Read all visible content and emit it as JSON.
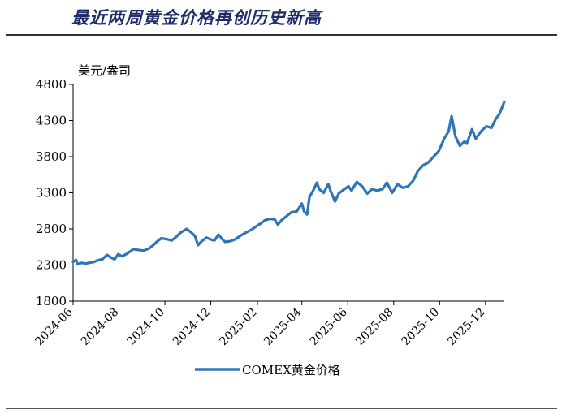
{
  "header": {
    "title": "最近两周黄金价格再创历史新高"
  },
  "chart_data": {
    "type": "line",
    "title": "最近两周黄金价格再创历史新高",
    "ylabel": "美元/盎司",
    "xlabel": "",
    "ylim": [
      1800,
      4800
    ],
    "yticks": [
      "1800",
      "2300",
      "2800",
      "3300",
      "3800",
      "4300",
      "4800"
    ],
    "xticks": [
      "2024-06",
      "2024-08",
      "2024-10",
      "2024-12",
      "2025-02",
      "2025-04",
      "2025-06",
      "2025-08",
      "2025-10",
      "2025-12"
    ],
    "x_range": [
      "2024-06",
      "2025-12-26"
    ],
    "legend": "COMEX黄金价格",
    "color": "#2e75b6",
    "series": [
      {
        "name": "COMEX黄金价格",
        "points": [
          [
            "2024-06-01",
            2345
          ],
          [
            "2024-06-05",
            2370
          ],
          [
            "2024-06-07",
            2310
          ],
          [
            "2024-06-12",
            2330
          ],
          [
            "2024-06-18",
            2320
          ],
          [
            "2024-06-24",
            2335
          ],
          [
            "2024-06-28",
            2340
          ],
          [
            "2024-07-05",
            2370
          ],
          [
            "2024-07-10",
            2380
          ],
          [
            "2024-07-16",
            2440
          ],
          [
            "2024-07-22",
            2400
          ],
          [
            "2024-07-26",
            2380
          ],
          [
            "2024-07-31",
            2450
          ],
          [
            "2024-08-05",
            2420
          ],
          [
            "2024-08-12",
            2460
          ],
          [
            "2024-08-20",
            2520
          ],
          [
            "2024-08-26",
            2510
          ],
          [
            "2024-09-03",
            2500
          ],
          [
            "2024-09-10",
            2530
          ],
          [
            "2024-09-16",
            2580
          ],
          [
            "2024-09-20",
            2620
          ],
          [
            "2024-09-26",
            2670
          ],
          [
            "2024-10-03",
            2660
          ],
          [
            "2024-10-10",
            2640
          ],
          [
            "2024-10-16",
            2690
          ],
          [
            "2024-10-22",
            2750
          ],
          [
            "2024-10-30",
            2800
          ],
          [
            "2024-11-05",
            2750
          ],
          [
            "2024-11-10",
            2700
          ],
          [
            "2024-11-14",
            2575
          ],
          [
            "2024-11-18",
            2620
          ],
          [
            "2024-11-25",
            2680
          ],
          [
            "2024-12-02",
            2650
          ],
          [
            "2024-12-06",
            2640
          ],
          [
            "2024-12-11",
            2720
          ],
          [
            "2024-12-16",
            2660
          ],
          [
            "2024-12-20",
            2620
          ],
          [
            "2024-12-27",
            2630
          ],
          [
            "2025-01-03",
            2660
          ],
          [
            "2025-01-10",
            2710
          ],
          [
            "2025-01-17",
            2750
          ],
          [
            "2025-01-24",
            2790
          ],
          [
            "2025-01-31",
            2840
          ],
          [
            "2025-02-06",
            2880
          ],
          [
            "2025-02-11",
            2920
          ],
          [
            "2025-02-18",
            2940
          ],
          [
            "2025-02-24",
            2930
          ],
          [
            "2025-02-28",
            2860
          ],
          [
            "2025-03-05",
            2920
          ],
          [
            "2025-03-12",
            2980
          ],
          [
            "2025-03-18",
            3030
          ],
          [
            "2025-03-25",
            3040
          ],
          [
            "2025-04-01",
            3150
          ],
          [
            "2025-04-04",
            3040
          ],
          [
            "2025-04-08",
            3000
          ],
          [
            "2025-04-11",
            3240
          ],
          [
            "2025-04-16",
            3330
          ],
          [
            "2025-04-21",
            3440
          ],
          [
            "2025-04-24",
            3350
          ],
          [
            "2025-04-30",
            3300
          ],
          [
            "2025-05-06",
            3420
          ],
          [
            "2025-05-09",
            3330
          ],
          [
            "2025-05-15",
            3180
          ],
          [
            "2025-05-20",
            3290
          ],
          [
            "2025-05-26",
            3340
          ],
          [
            "2025-06-02",
            3390
          ],
          [
            "2025-06-06",
            3330
          ],
          [
            "2025-06-13",
            3450
          ],
          [
            "2025-06-20",
            3390
          ],
          [
            "2025-06-27",
            3290
          ],
          [
            "2025-07-03",
            3350
          ],
          [
            "2025-07-10",
            3330
          ],
          [
            "2025-07-17",
            3350
          ],
          [
            "2025-07-23",
            3440
          ],
          [
            "2025-07-30",
            3300
          ],
          [
            "2025-08-06",
            3420
          ],
          [
            "2025-08-13",
            3370
          ],
          [
            "2025-08-20",
            3390
          ],
          [
            "2025-08-27",
            3470
          ],
          [
            "2025-09-02",
            3600
          ],
          [
            "2025-09-09",
            3680
          ],
          [
            "2025-09-16",
            3720
          ],
          [
            "2025-09-23",
            3800
          ],
          [
            "2025-09-30",
            3880
          ],
          [
            "2025-10-07",
            4050
          ],
          [
            "2025-10-13",
            4150
          ],
          [
            "2025-10-17",
            4360
          ],
          [
            "2025-10-22",
            4080
          ],
          [
            "2025-10-28",
            3950
          ],
          [
            "2025-11-03",
            4010
          ],
          [
            "2025-11-06",
            3980
          ],
          [
            "2025-11-13",
            4180
          ],
          [
            "2025-11-18",
            4050
          ],
          [
            "2025-11-25",
            4150
          ],
          [
            "2025-12-02",
            4220
          ],
          [
            "2025-12-09",
            4200
          ],
          [
            "2025-12-15",
            4330
          ],
          [
            "2025-12-19",
            4380
          ],
          [
            "2025-12-23",
            4480
          ],
          [
            "2025-12-26",
            4560
          ]
        ]
      }
    ]
  }
}
